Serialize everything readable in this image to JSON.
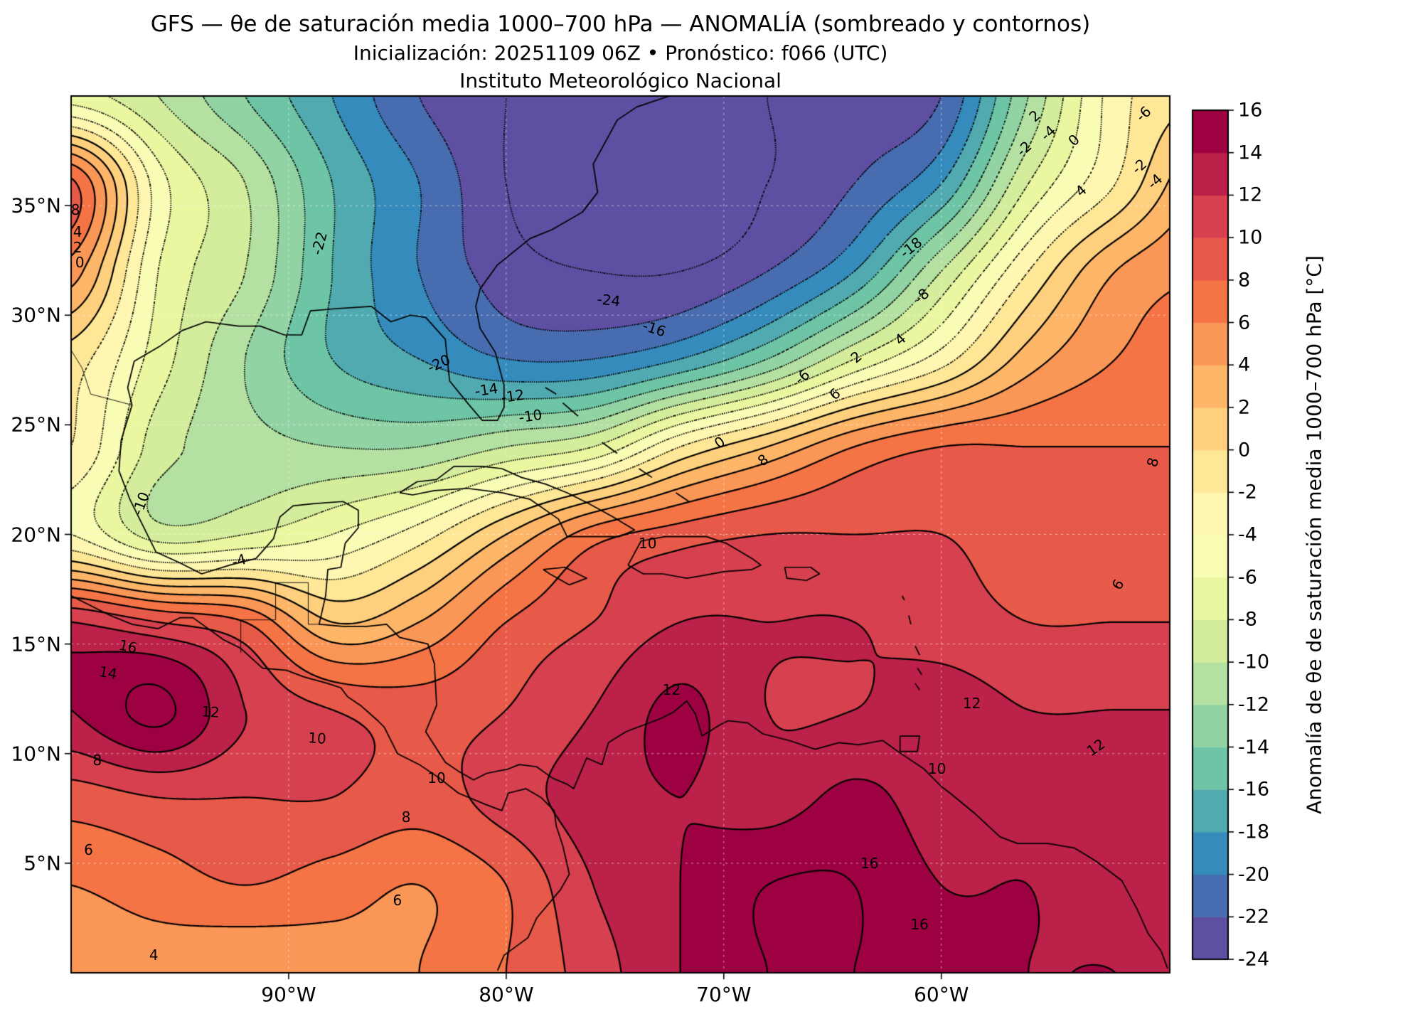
{
  "title": {
    "line1": "GFS — θe de saturación media 1000–700 hPa — ANOMALÍA (sombreado y contornos)",
    "line2": "Inicialización: 20251109 06Z   •   Pronóstico: f066 (UTC)",
    "line3": "Instituto Meteorológico Nacional"
  },
  "axes": {
    "x_ticks": [
      {
        "label": "90°W",
        "lon": -90
      },
      {
        "label": "80°W",
        "lon": -80
      },
      {
        "label": "70°W",
        "lon": -70
      },
      {
        "label": "60°W",
        "lon": -60
      }
    ],
    "y_ticks": [
      {
        "label": "35°N",
        "lat": 35
      },
      {
        "label": "30°N",
        "lat": 30
      },
      {
        "label": "25°N",
        "lat": 25
      },
      {
        "label": "20°N",
        "lat": 20
      },
      {
        "label": "15°N",
        "lat": 15
      },
      {
        "label": "10°N",
        "lat": 10
      },
      {
        "label": "5°N",
        "lat": 5
      }
    ]
  },
  "colorbar": {
    "label": "Anomalía de θe de saturación media 1000–700 hPa [°C]",
    "ticks": [
      16,
      14,
      12,
      10,
      8,
      6,
      4,
      2,
      0,
      -2,
      -4,
      -6,
      -8,
      -10,
      -12,
      -14,
      -16,
      -18,
      -20,
      -22,
      -24
    ],
    "min": -24,
    "max": 16,
    "step": 2,
    "anchors": [
      "#5e4fa2",
      "#3288bd",
      "#66c2a5",
      "#abdda4",
      "#e6f598",
      "#ffffbf",
      "#fee08b",
      "#fdae61",
      "#f46d43",
      "#d53e4f",
      "#9e0142"
    ]
  },
  "chart_data": {
    "type": "heatmap",
    "subtype": "filled-contour-map",
    "title": "GFS θe de saturación media 1000–700 hPa — anomalía",
    "units": "°C",
    "lon_range": [
      -100,
      -49.5
    ],
    "lat_range": [
      0,
      40
    ],
    "contour_interval": 2,
    "contour_levels_min": -24,
    "contour_levels_max": 16,
    "contour_style": {
      "negative": "dotted",
      "zero_positive": "solid"
    },
    "grid": {
      "lons": [
        -100,
        -96,
        -92,
        -88,
        -84,
        -80,
        -76,
        -72,
        -68,
        -64,
        -60,
        -56,
        -52,
        -48
      ],
      "lats": [
        40,
        36,
        32,
        28,
        24,
        20,
        16,
        12,
        8,
        4,
        0
      ],
      "values": [
        [
          -7,
          -10,
          -14,
          -18,
          -22,
          -24,
          -25,
          -25,
          -24,
          -23,
          -22,
          -12,
          -3,
          0
        ],
        [
          8.5,
          -5,
          -10,
          -16,
          -20,
          -24,
          -26,
          -26,
          -24,
          -22,
          -18,
          -8,
          -2,
          4
        ],
        [
          5,
          -6,
          -10,
          -16,
          -20,
          -23,
          -24,
          -24,
          -22,
          -18,
          -10,
          -2,
          4,
          6
        ],
        [
          -1,
          -7,
          -12,
          -16,
          -18,
          -20,
          -20,
          -18,
          -14,
          -8,
          -3,
          3,
          6,
          7
        ],
        [
          -2,
          -9,
          -11,
          -12,
          -12,
          -10,
          -8,
          -2,
          2,
          6,
          8,
          8,
          8,
          8
        ],
        [
          -4,
          -9,
          -8,
          -6,
          -3,
          2,
          7,
          9,
          10,
          10,
          10,
          9,
          9,
          9
        ],
        [
          12,
          10,
          8,
          2,
          4,
          8,
          10,
          12,
          12,
          12,
          11,
          10,
          10,
          10
        ],
        [
          14,
          16.5,
          12,
          10,
          9,
          10,
          12,
          14.5,
          12,
          12,
          13,
          12,
          12,
          12
        ],
        [
          9,
          10,
          10,
          10,
          9,
          11,
          13,
          14,
          13,
          14.5,
          13,
          13,
          13,
          14
        ],
        [
          6,
          7,
          8,
          7,
          6,
          8,
          12,
          14,
          16,
          16,
          14,
          14,
          13,
          13
        ],
        [
          5,
          5,
          4,
          5,
          6,
          8,
          11,
          14,
          16,
          16,
          15,
          14,
          14,
          13
        ]
      ]
    }
  },
  "contour_labels": [
    {
      "text": "-24",
      "lon": -75.3,
      "lat": 30.7,
      "rot": 6
    },
    {
      "text": "-22",
      "lon": -88.6,
      "lat": 33.3,
      "rot": -75
    },
    {
      "text": "-20",
      "lon": -83.1,
      "lat": 27.8,
      "rot": -25
    },
    {
      "text": "-16",
      "lon": -73.2,
      "lat": 29.4,
      "rot": 18
    },
    {
      "text": "-18",
      "lon": -61.4,
      "lat": 33.1,
      "rot": -38
    },
    {
      "text": "-14",
      "lon": -80.9,
      "lat": 26.6,
      "rot": -8
    },
    {
      "text": "-12",
      "lon": -79.7,
      "lat": 26.3,
      "rot": -8
    },
    {
      "text": "-10",
      "lon": -78.9,
      "lat": 25.4,
      "rot": -8
    },
    {
      "text": "-10",
      "lon": -96.8,
      "lat": 21.4,
      "rot": -70
    },
    {
      "text": "-8",
      "lon": -60.9,
      "lat": 30.9,
      "rot": -40
    },
    {
      "text": "-6",
      "lon": -66.4,
      "lat": 27.2,
      "rot": -40
    },
    {
      "text": "-4",
      "lon": -92.3,
      "lat": 18.8,
      "rot": -15
    },
    {
      "text": "-2",
      "lon": -56.2,
      "lat": 37.6,
      "rot": -42
    },
    {
      "text": "-4",
      "lon": -55.1,
      "lat": 38.3,
      "rot": -42
    },
    {
      "text": "-6",
      "lon": -50.7,
      "lat": 39.2,
      "rot": -42
    },
    {
      "text": "-2",
      "lon": -50.9,
      "lat": 36.8,
      "rot": -42
    },
    {
      "text": "-4",
      "lon": -50.2,
      "lat": 36.1,
      "rot": -42
    },
    {
      "text": "0",
      "lon": -53.9,
      "lat": 38.0,
      "rot": -42
    },
    {
      "text": "2",
      "lon": -55.7,
      "lat": 39.1,
      "rot": -42
    },
    {
      "text": "4",
      "lon": -53.6,
      "lat": 35.7,
      "rot": -42
    },
    {
      "text": "0",
      "lon": -70.2,
      "lat": 24.2,
      "rot": -35
    },
    {
      "text": "2",
      "lon": -63.9,
      "lat": 28.1,
      "rot": -40
    },
    {
      "text": "4",
      "lon": -61.9,
      "lat": 28.9,
      "rot": -40
    },
    {
      "text": "6",
      "lon": -64.9,
      "lat": 26.4,
      "rot": -40
    },
    {
      "text": "8",
      "lon": -68.2,
      "lat": 23.4,
      "rot": -35
    },
    {
      "text": "8",
      "lon": -99.8,
      "lat": 34.8,
      "rot": 0
    },
    {
      "text": "4",
      "lon": -99.7,
      "lat": 33.8,
      "rot": 0
    },
    {
      "text": "2",
      "lon": -99.7,
      "lat": 33.1,
      "rot": 0
    },
    {
      "text": "0",
      "lon": -99.6,
      "lat": 32.4,
      "rot": 0
    },
    {
      "text": "16",
      "lon": -97.4,
      "lat": 14.9,
      "rot": 12
    },
    {
      "text": "14",
      "lon": -98.3,
      "lat": 13.7,
      "rot": 10
    },
    {
      "text": "12",
      "lon": -93.6,
      "lat": 11.9,
      "rot": 4
    },
    {
      "text": "10",
      "lon": -88.7,
      "lat": 10.7,
      "rot": 4
    },
    {
      "text": "8",
      "lon": -98.8,
      "lat": 9.7,
      "rot": 0
    },
    {
      "text": "6",
      "lon": -99.2,
      "lat": 5.6,
      "rot": 0
    },
    {
      "text": "8",
      "lon": -84.6,
      "lat": 7.1,
      "rot": 0
    },
    {
      "text": "10",
      "lon": -83.2,
      "lat": 8.9,
      "rot": 0
    },
    {
      "text": "6",
      "lon": -85.0,
      "lat": 3.3,
      "rot": 0
    },
    {
      "text": "4",
      "lon": -96.2,
      "lat": 0.8,
      "rot": 0
    },
    {
      "text": "10",
      "lon": -73.5,
      "lat": 19.6,
      "rot": 0
    },
    {
      "text": "12",
      "lon": -72.4,
      "lat": 12.9,
      "rot": 0
    },
    {
      "text": "16",
      "lon": -63.3,
      "lat": 5.0,
      "rot": 0
    },
    {
      "text": "16",
      "lon": -61.0,
      "lat": 2.2,
      "rot": 0
    },
    {
      "text": "10",
      "lon": -60.2,
      "lat": 9.3,
      "rot": 0
    },
    {
      "text": "12",
      "lon": -58.6,
      "lat": 12.3,
      "rot": 0
    },
    {
      "text": "8",
      "lon": -50.3,
      "lat": 23.3,
      "rot": -75
    },
    {
      "text": "6",
      "lon": -51.9,
      "lat": 17.7,
      "rot": -60
    },
    {
      "text": "12",
      "lon": -52.9,
      "lat": 10.3,
      "rot": -35
    }
  ],
  "coastlines": [
    [
      [
        -72.5,
        40
      ],
      [
        -74,
        39.5
      ],
      [
        -74.9,
        38.9
      ],
      [
        -75.5,
        37.8
      ],
      [
        -76,
        36.9
      ],
      [
        -75.8,
        35.6
      ],
      [
        -76.5,
        34.7
      ],
      [
        -77.9,
        33.9
      ],
      [
        -78.9,
        33.5
      ],
      [
        -80.4,
        32.3
      ],
      [
        -81.2,
        31.2
      ],
      [
        -81.4,
        30.4
      ],
      [
        -81.2,
        29.4
      ],
      [
        -80.5,
        28.3
      ],
      [
        -80.1,
        26.8
      ],
      [
        -80.1,
        25.8
      ],
      [
        -80.4,
        25.2
      ],
      [
        -81.1,
        25.2
      ],
      [
        -81.7,
        25.9
      ],
      [
        -82.6,
        27
      ],
      [
        -82.7,
        27.9
      ],
      [
        -82.8,
        28.9
      ],
      [
        -83.7,
        29.9
      ],
      [
        -84.4,
        30
      ],
      [
        -85.3,
        29.7
      ],
      [
        -86.2,
        30.4
      ],
      [
        -87.8,
        30.3
      ],
      [
        -89,
        30.2
      ],
      [
        -89.4,
        29.1
      ],
      [
        -90.2,
        29.1
      ],
      [
        -91.3,
        29.5
      ],
      [
        -92.3,
        29.5
      ],
      [
        -93.8,
        29.7
      ],
      [
        -94.9,
        29.3
      ],
      [
        -95.9,
        28.6
      ],
      [
        -97.1,
        27.9
      ],
      [
        -97.4,
        26.7
      ],
      [
        -97.2,
        25.9
      ],
      [
        -97.7,
        24.3
      ],
      [
        -97.8,
        22.9
      ],
      [
        -97.3,
        21.6
      ],
      [
        -96.1,
        19.2
      ],
      [
        -95,
        18.7
      ],
      [
        -94,
        18.2
      ],
      [
        -92.7,
        18.6
      ],
      [
        -91.5,
        18.9
      ],
      [
        -90.7,
        19.8
      ],
      [
        -90.4,
        20.8
      ],
      [
        -89.8,
        21.3
      ],
      [
        -88.9,
        21.4
      ],
      [
        -87.5,
        21.5
      ],
      [
        -86.8,
        21.1
      ],
      [
        -86.8,
        20.3
      ],
      [
        -87.4,
        19.6
      ],
      [
        -87.6,
        18.5
      ],
      [
        -88.2,
        18.4
      ],
      [
        -88.3,
        17.2
      ],
      [
        -88.6,
        15.9
      ],
      [
        -87.5,
        15.8
      ],
      [
        -86.4,
        15.8
      ],
      [
        -85.5,
        15.9
      ],
      [
        -84.9,
        15.3
      ],
      [
        -83.6,
        15
      ],
      [
        -83.3,
        14.1
      ],
      [
        -83.2,
        12.2
      ],
      [
        -83.7,
        11
      ],
      [
        -82.8,
        9.6
      ],
      [
        -82.2,
        9.2
      ],
      [
        -81.5,
        8.8
      ],
      [
        -80.9,
        9.1
      ],
      [
        -79.9,
        9.3
      ],
      [
        -79.4,
        9.5
      ],
      [
        -78.6,
        9.4
      ],
      [
        -77.9,
        8.9
      ],
      [
        -77.2,
        8.6
      ],
      [
        -76.9,
        8.4
      ],
      [
        -76.3,
        9.8
      ],
      [
        -75.6,
        9.5
      ],
      [
        -75.3,
        10.5
      ],
      [
        -74.5,
        11
      ],
      [
        -72.9,
        11.6
      ],
      [
        -72.3,
        11.9
      ],
      [
        -71.7,
        12.4
      ],
      [
        -71.3,
        11.8
      ],
      [
        -71,
        10.8
      ],
      [
        -70.2,
        11.3
      ],
      [
        -69.8,
        11.5
      ],
      [
        -68.9,
        11.4
      ],
      [
        -68.2,
        10.9
      ],
      [
        -67,
        10.6
      ],
      [
        -65.8,
        10.2
      ],
      [
        -64.7,
        10.5
      ],
      [
        -63.8,
        10.4
      ],
      [
        -62.7,
        10.6
      ],
      [
        -62,
        10.1
      ],
      [
        -60.8,
        9.3
      ],
      [
        -60,
        8.5
      ],
      [
        -59.6,
        8.2
      ],
      [
        -58.5,
        7.3
      ],
      [
        -57.3,
        6.2
      ],
      [
        -56.5,
        5.9
      ],
      [
        -55.1,
        5.9
      ],
      [
        -53.9,
        5.7
      ],
      [
        -52.9,
        5.1
      ],
      [
        -51.7,
        4.2
      ],
      [
        -51,
        2.9
      ],
      [
        -50.5,
        1.8
      ],
      [
        -49.9,
        1
      ],
      [
        -49.6,
        0.2
      ]
    ],
    [
      [
        -100,
        17.2
      ],
      [
        -99,
        16.7
      ],
      [
        -98.2,
        16.3
      ],
      [
        -97.2,
        15.9
      ],
      [
        -96,
        15.7
      ],
      [
        -95,
        16.2
      ],
      [
        -94.4,
        16.2
      ],
      [
        -93,
        15.2
      ],
      [
        -92.2,
        14.8
      ],
      [
        -91.2,
        13.9
      ],
      [
        -90.1,
        13.8
      ],
      [
        -89.3,
        13.5
      ],
      [
        -88.2,
        13.2
      ],
      [
        -87.6,
        13
      ],
      [
        -87.3,
        12.6
      ],
      [
        -86.7,
        12.2
      ],
      [
        -85.9,
        11.5
      ],
      [
        -85.6,
        11.2
      ],
      [
        -85,
        10
      ],
      [
        -84,
        9.5
      ],
      [
        -83.1,
        8.9
      ],
      [
        -82.2,
        8.2
      ],
      [
        -81,
        7.7
      ],
      [
        -80.2,
        7.4
      ],
      [
        -79.9,
        8.2
      ],
      [
        -79.1,
        8.4
      ],
      [
        -78.4,
        8
      ],
      [
        -77.8,
        7.4
      ],
      [
        -77.7,
        6.7
      ],
      [
        -77.4,
        5.8
      ],
      [
        -77.1,
        4.5
      ],
      [
        -77.5,
        3.8
      ],
      [
        -78.6,
        2.5
      ],
      [
        -79,
        1.6
      ],
      [
        -80.1,
        0.8
      ],
      [
        -80.4,
        0.1
      ]
    ],
    [
      [
        -84.9,
        21.9
      ],
      [
        -84.1,
        22.4
      ],
      [
        -83.2,
        22.5
      ],
      [
        -82.4,
        23.1
      ],
      [
        -81.1,
        23.1
      ],
      [
        -80.2,
        23
      ],
      [
        -79.3,
        22.6
      ],
      [
        -78.2,
        22.3
      ],
      [
        -77.2,
        21.9
      ],
      [
        -76.2,
        21.4
      ],
      [
        -75.1,
        20.8
      ],
      [
        -74.1,
        20.2
      ],
      [
        -74.8,
        19.9
      ],
      [
        -76.2,
        19.9
      ],
      [
        -77.2,
        19.9
      ],
      [
        -77.6,
        20.7
      ],
      [
        -78.9,
        21.6
      ],
      [
        -80.2,
        21.9
      ],
      [
        -81.8,
        22.1
      ],
      [
        -83.3,
        22
      ],
      [
        -84.3,
        21.8
      ],
      [
        -84.9,
        21.9
      ]
    ],
    [
      [
        -74.4,
        18.6
      ],
      [
        -73.8,
        19.7
      ],
      [
        -72.7,
        19.9
      ],
      [
        -71.7,
        19.9
      ],
      [
        -70.8,
        19.9
      ],
      [
        -69.9,
        19.6
      ],
      [
        -68.7,
        18.9
      ],
      [
        -68.3,
        18.6
      ],
      [
        -68.7,
        18.4
      ],
      [
        -70,
        18.3
      ],
      [
        -71.1,
        18.1
      ],
      [
        -71.7,
        18
      ],
      [
        -72.8,
        18.2
      ],
      [
        -73.7,
        18.2
      ],
      [
        -74.4,
        18.6
      ]
    ],
    [
      [
        -78.3,
        18.4
      ],
      [
        -77.3,
        18.5
      ],
      [
        -76.3,
        18
      ],
      [
        -77.1,
        17.7
      ],
      [
        -78,
        18.2
      ],
      [
        -78.3,
        18.4
      ]
    ],
    [
      [
        -67.2,
        18.5
      ],
      [
        -66,
        18.5
      ],
      [
        -65.6,
        18.2
      ],
      [
        -66.2,
        17.9
      ],
      [
        -67.1,
        18
      ],
      [
        -67.2,
        18.5
      ]
    ],
    [
      [
        -61.9,
        10.8
      ],
      [
        -61,
        10.8
      ],
      [
        -61.1,
        10.1
      ],
      [
        -61.9,
        10.1
      ],
      [
        -61.9,
        10.8
      ]
    ],
    [
      [
        -78.2,
        26.7
      ],
      [
        -77.7,
        26.4
      ]
    ],
    [
      [
        -77.4,
        26
      ],
      [
        -76.7,
        25.4
      ]
    ],
    [
      [
        -75.6,
        24.2
      ],
      [
        -74.9,
        23.7
      ]
    ],
    [
      [
        -73.9,
        23
      ],
      [
        -73.3,
        22.6
      ]
    ],
    [
      [
        -72.2,
        21.9
      ],
      [
        -71.6,
        21.5
      ]
    ],
    [
      [
        -61.5,
        16.3
      ],
      [
        -61.4,
        15.9
      ]
    ],
    [
      [
        -61.2,
        14.9
      ],
      [
        -61,
        14.5
      ]
    ],
    [
      [
        -61.1,
        13.9
      ],
      [
        -60.9,
        13.6
      ]
    ],
    [
      [
        -61.2,
        13.2
      ],
      [
        -61,
        12.9
      ]
    ],
    [
      [
        -61.8,
        17.2
      ],
      [
        -61.7,
        17
      ]
    ]
  ],
  "borders": [
    [
      [
        -97.2,
        25.9
      ],
      [
        -99.1,
        26.4
      ],
      [
        -99.5,
        27.6
      ],
      [
        -100,
        28.4
      ]
    ],
    [
      [
        -92.2,
        14.6
      ],
      [
        -92.2,
        16.1
      ],
      [
        -90.6,
        16.1
      ],
      [
        -90.6,
        17.8
      ],
      [
        -89.1,
        17.8
      ],
      [
        -89.1,
        15.9
      ],
      [
        -88.6,
        15.9
      ]
    ]
  ],
  "graticule": {
    "lons": [
      -90,
      -80,
      -70,
      -60
    ],
    "lats": [
      5,
      10,
      15,
      20,
      25,
      30,
      35
    ]
  }
}
